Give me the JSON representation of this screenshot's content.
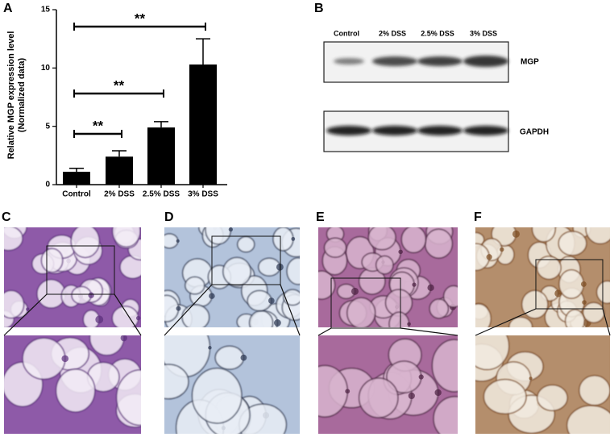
{
  "panels": {
    "a": "A",
    "b": "B",
    "c": "C",
    "d": "D",
    "e": "E",
    "f": "F"
  },
  "chart_data": {
    "type": "bar",
    "ylabel": [
      "Relative MGP expression level",
      "(Normalized data)"
    ],
    "categories": [
      "Control",
      "2% DSS",
      "2.5% DSS",
      "3% DSS"
    ],
    "values": [
      1.1,
      2.4,
      4.9,
      10.3
    ],
    "errors": [
      0.3,
      0.5,
      0.5,
      2.2
    ],
    "color": "#000000",
    "ylim": [
      0,
      15
    ],
    "yticks": [
      0,
      5,
      10,
      15
    ],
    "grid": false,
    "annotations": [
      "**",
      "**",
      "**"
    ]
  },
  "blot": {
    "columns": [
      "Control",
      "2% DSS",
      "2.5% DSS",
      "3% DSS"
    ],
    "rows": [
      "MGP",
      "GAPDH"
    ]
  }
}
